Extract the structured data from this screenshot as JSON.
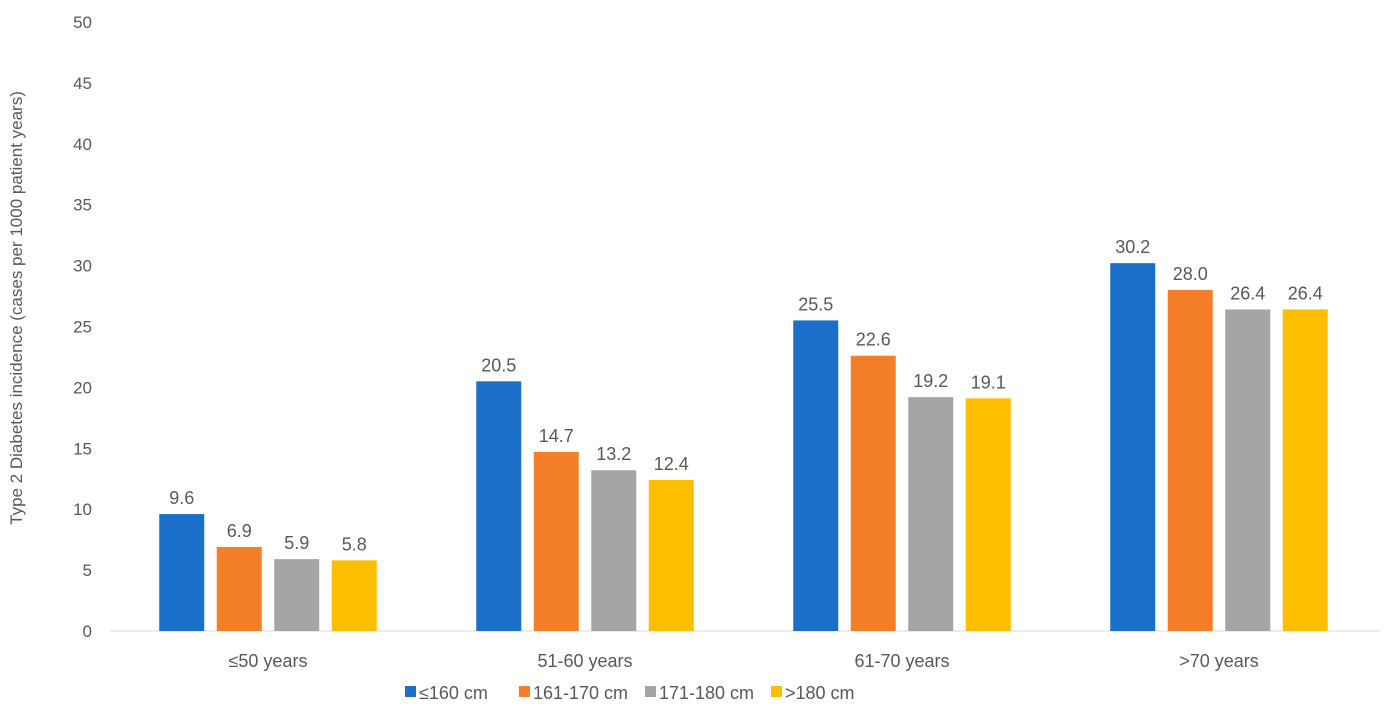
{
  "chart_data": {
    "type": "bar",
    "title": "",
    "xlabel": "",
    "ylabel": "Type 2 Diabetes incidence (cases per 1000 patient years)",
    "ylim": [
      0,
      50
    ],
    "yticks": [
      0,
      5,
      10,
      15,
      20,
      25,
      30,
      35,
      40,
      45,
      50
    ],
    "grid": false,
    "legend_position": "bottom",
    "categories": [
      "≤50 years",
      "51-60 years",
      "61-70 years",
      ">70 years"
    ],
    "series": [
      {
        "name": "≤160 cm",
        "color": "#1a70c8",
        "values": [
          9.6,
          20.5,
          25.5,
          30.2
        ]
      },
      {
        "name": "161-170 cm",
        "color": "#f47f28",
        "values": [
          6.9,
          14.7,
          22.6,
          28.0
        ]
      },
      {
        "name": "171-180 cm",
        "color": "#a5a5a5",
        "values": [
          5.9,
          13.2,
          19.2,
          26.4
        ]
      },
      {
        "name": ">180 cm",
        "color": "#fdbe00",
        "values": [
          5.8,
          12.4,
          19.1,
          26.4
        ]
      }
    ]
  }
}
